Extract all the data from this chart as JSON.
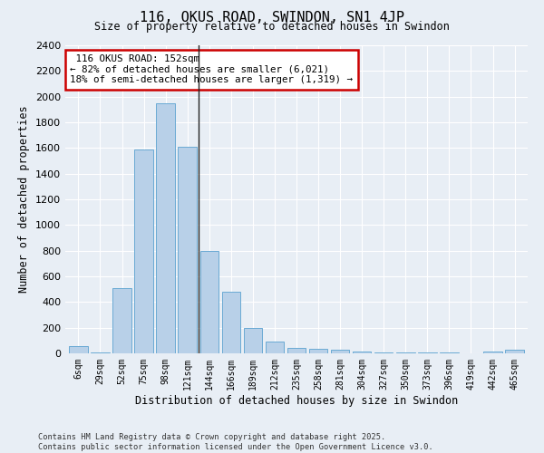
{
  "title": "116, OKUS ROAD, SWINDON, SN1 4JP",
  "subtitle": "Size of property relative to detached houses in Swindon",
  "xlabel": "Distribution of detached houses by size in Swindon",
  "ylabel": "Number of detached properties",
  "bar_color": "#b8d0e8",
  "bar_edge_color": "#6aaad4",
  "bg_color": "#e8eef5",
  "grid_color": "#ffffff",
  "annotation_line_color": "#222222",
  "annotation_box_color": "#cc0000",
  "categories": [
    "6sqm",
    "29sqm",
    "52sqm",
    "75sqm",
    "98sqm",
    "121sqm",
    "144sqm",
    "166sqm",
    "189sqm",
    "212sqm",
    "235sqm",
    "258sqm",
    "281sqm",
    "304sqm",
    "327sqm",
    "350sqm",
    "373sqm",
    "396sqm",
    "419sqm",
    "442sqm",
    "465sqm"
  ],
  "values": [
    60,
    10,
    510,
    1590,
    1950,
    1610,
    800,
    480,
    200,
    90,
    45,
    35,
    25,
    15,
    10,
    8,
    5,
    5,
    0,
    15,
    25
  ],
  "ylim": [
    0,
    2400
  ],
  "yticks": [
    0,
    200,
    400,
    600,
    800,
    1000,
    1200,
    1400,
    1600,
    1800,
    2000,
    2200,
    2400
  ],
  "property_label": "116 OKUS ROAD: 152sqm",
  "pct_smaller": 82,
  "n_smaller": 6021,
  "pct_larger_semi": 18,
  "n_larger_semi": 1319,
  "vline_category_index": 6,
  "footer_line1": "Contains HM Land Registry data © Crown copyright and database right 2025.",
  "footer_line2": "Contains public sector information licensed under the Open Government Licence v3.0."
}
